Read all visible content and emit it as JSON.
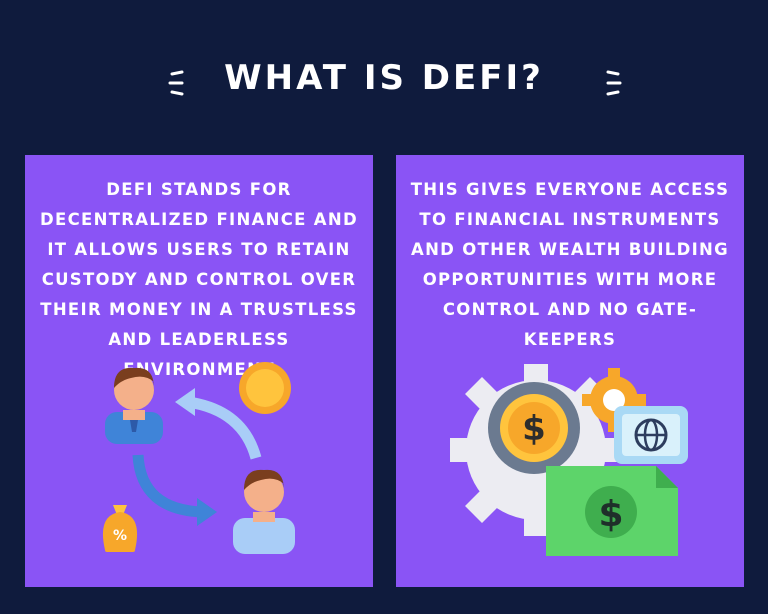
{
  "title": "WHAT IS DEFI?",
  "cards": [
    {
      "text": "DEFI STANDS FOR DECENTRALIZED FINANCE AND IT ALLOWS USERS TO RETAIN CUSTODY AND CONTROL OVER THEIR MONEY IN A TRUSTLESS AND LEADERLESS ENVIRONMENT",
      "illustration": "exchange-people-icon"
    },
    {
      "text": "THIS GIVES EVERYONE ACCESS TO FINANCIAL INSTRUMENTS AND OTHER WEALTH BUILDING OPPORTUNITIES WITH MORE CONTROL AND NO GATE-KEEPERS",
      "illustration": "finance-gears-icon"
    }
  ],
  "colors": {
    "background": "#0f1b3d",
    "card": "#8a54f5",
    "text": "#ffffff"
  }
}
